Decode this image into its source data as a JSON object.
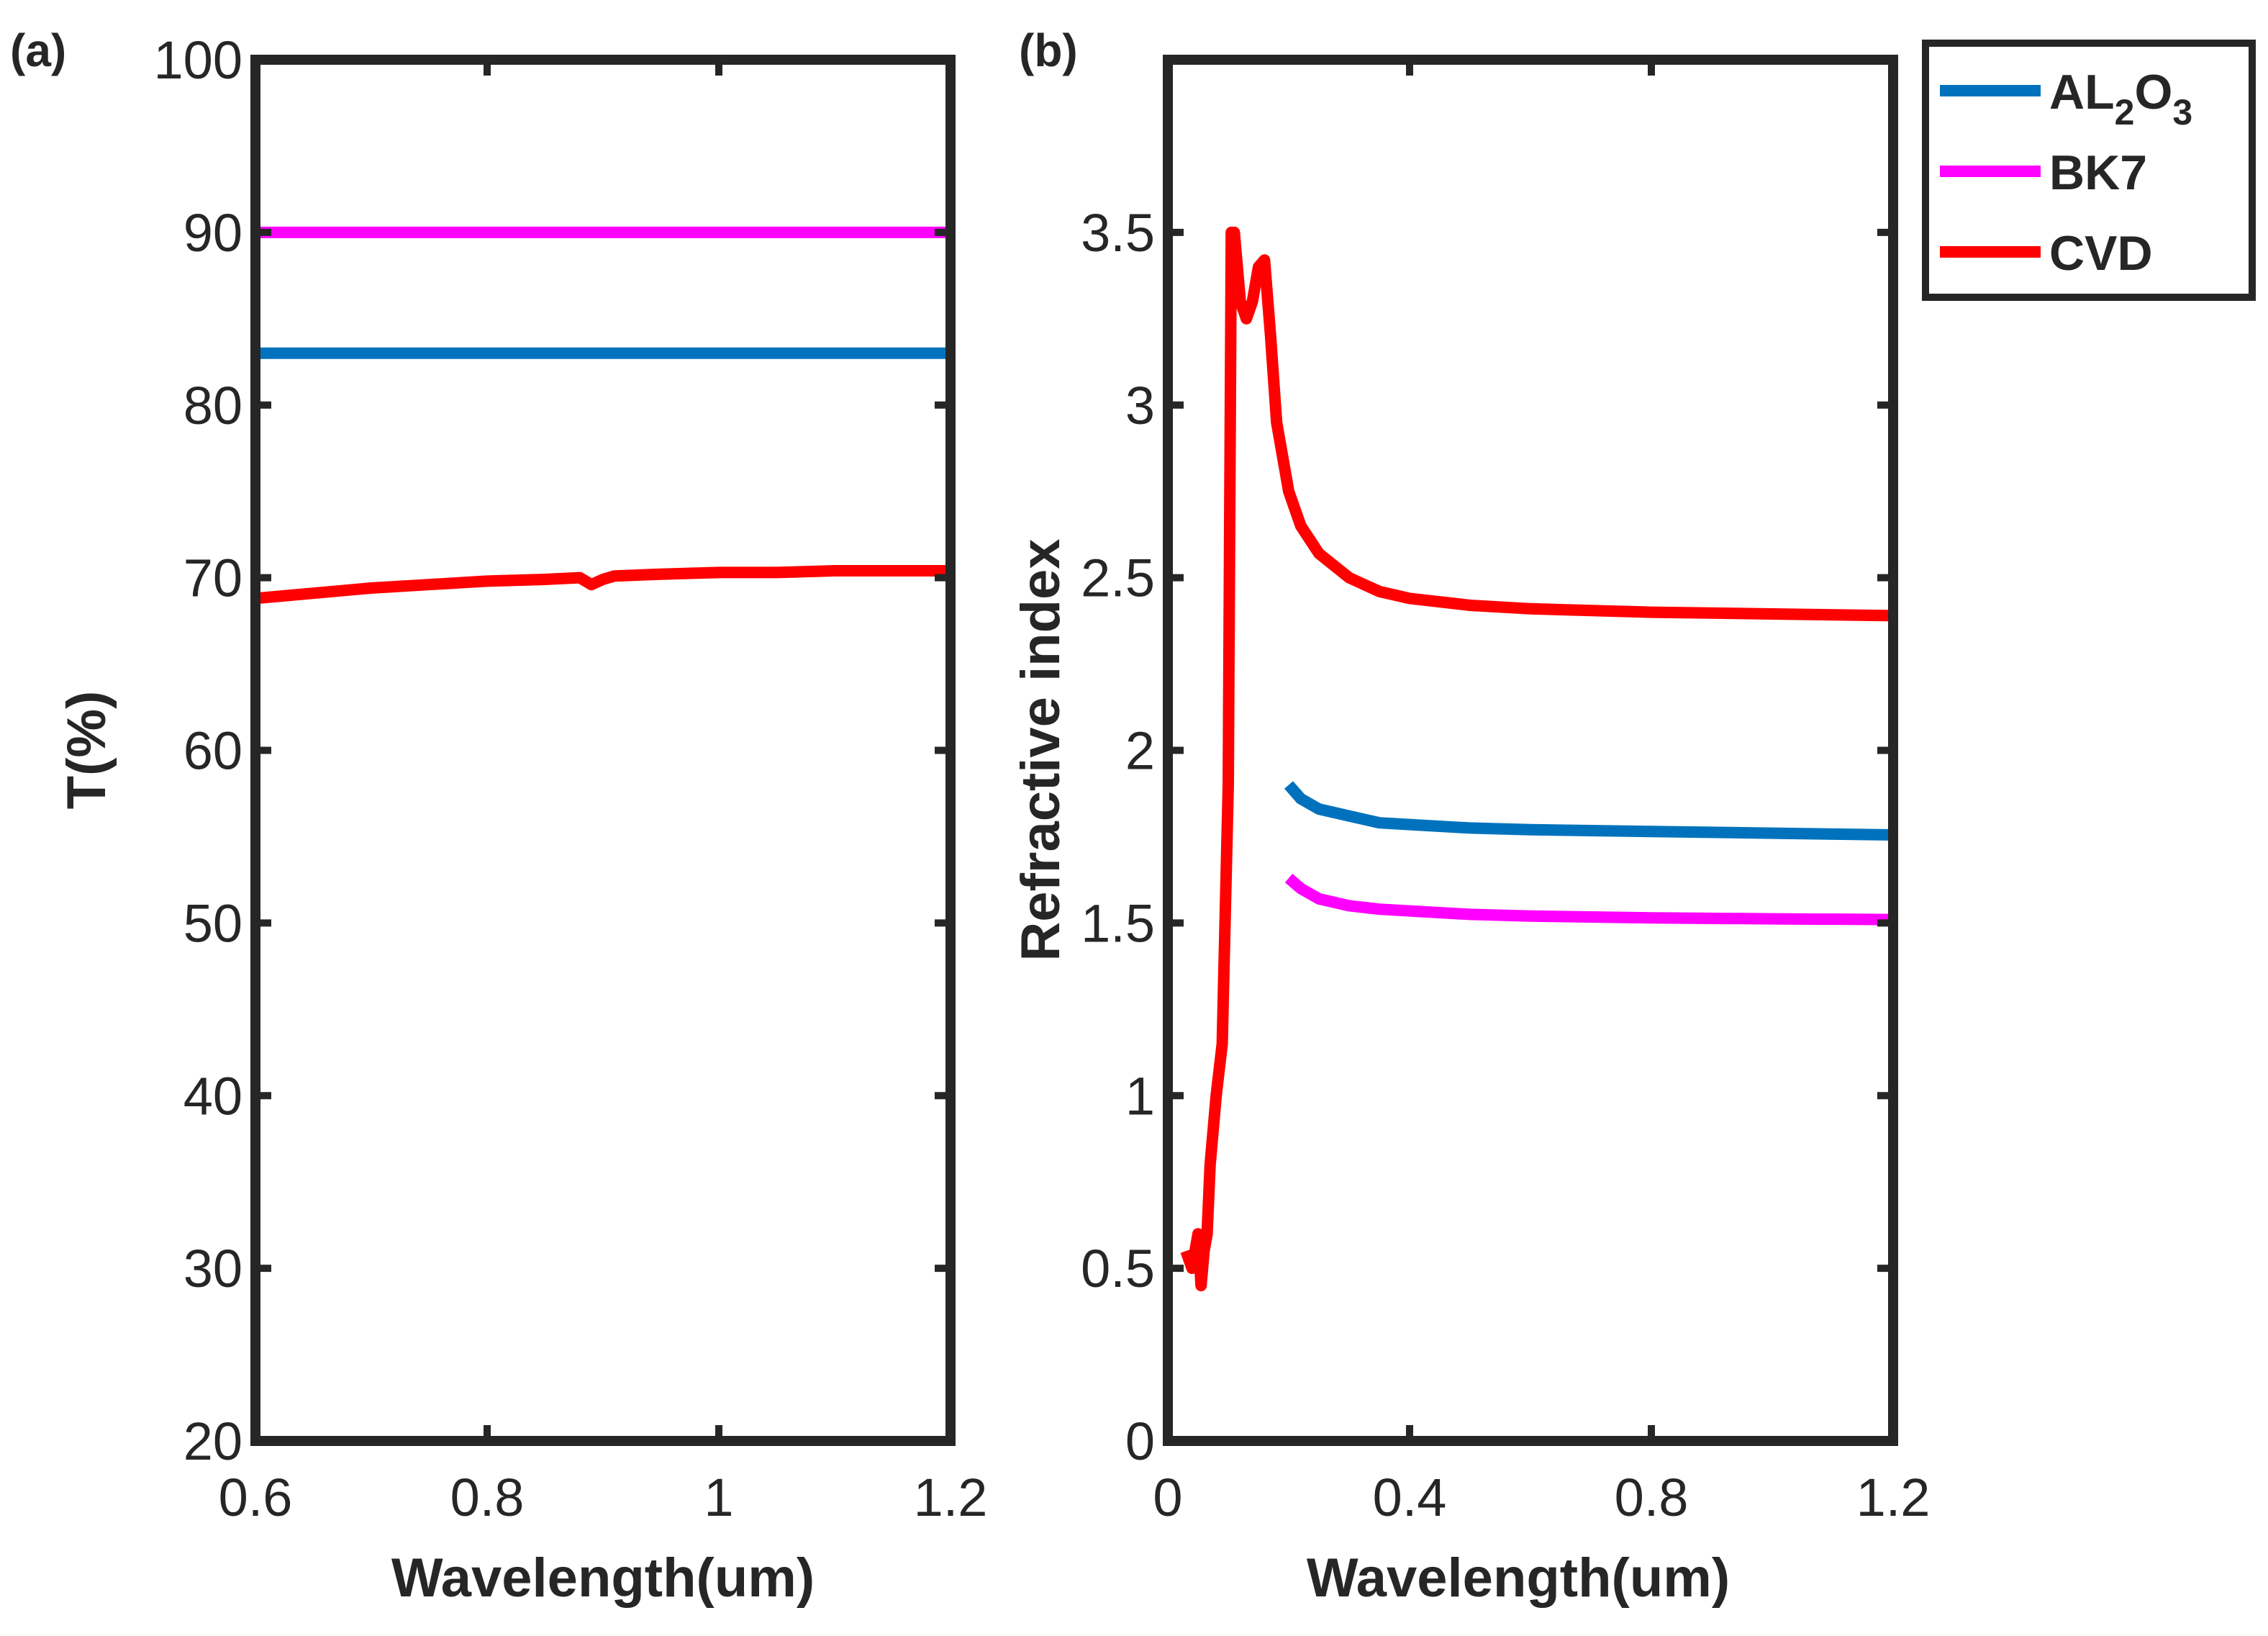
{
  "chart_data": [
    {
      "panel_label": "(a)",
      "type": "line",
      "xlabel": "Wavelength(um)",
      "ylabel": "T(%)",
      "xlim": [
        0.6,
        1.2
      ],
      "ylim": [
        20,
        100
      ],
      "xticks": [
        0.6,
        0.8,
        1,
        1.2
      ],
      "xtick_labels": [
        "0.6",
        "0.8",
        "1",
        "1.2"
      ],
      "yticks": [
        20,
        30,
        40,
        50,
        60,
        70,
        80,
        90,
        100
      ],
      "ytick_labels": [
        "20",
        "30",
        "40",
        "50",
        "60",
        "70",
        "80",
        "90",
        "100"
      ],
      "grid": false,
      "series": [
        {
          "name": "AL2O3",
          "color": "#0072BD",
          "x": [
            0.6,
            1.2
          ],
          "values": [
            83,
            83
          ]
        },
        {
          "name": "BK7",
          "color": "#FF00FF",
          "x": [
            0.6,
            1.2
          ],
          "values": [
            90,
            90
          ]
        },
        {
          "name": "CVD",
          "color": "#FF0000",
          "x": [
            0.6,
            0.65,
            0.7,
            0.75,
            0.8,
            0.85,
            0.88,
            0.89,
            0.9,
            0.91,
            0.95,
            1.0,
            1.05,
            1.1,
            1.15,
            1.2
          ],
          "values": [
            68.8,
            69.1,
            69.4,
            69.6,
            69.8,
            69.9,
            70.0,
            69.6,
            69.9,
            70.1,
            70.2,
            70.3,
            70.3,
            70.4,
            70.4,
            70.4
          ]
        }
      ]
    },
    {
      "panel_label": "(b)",
      "type": "line",
      "xlabel": "Wavelength(um)",
      "ylabel": "Refractive index",
      "xlim": [
        0,
        1.2
      ],
      "ylim": [
        0,
        4
      ],
      "xticks": [
        0,
        0.4,
        0.8,
        1.2
      ],
      "xtick_labels": [
        "0",
        "0.4",
        "0.8",
        "1.2"
      ],
      "yticks": [
        0,
        0.5,
        1,
        1.5,
        2,
        2.5,
        3,
        3.5
      ],
      "ytick_labels": [
        "0",
        "0.5",
        "1",
        "1.5",
        "2",
        "2.5",
        "3",
        "3.5"
      ],
      "grid": false,
      "legend_position": "top-right, outside",
      "series": [
        {
          "name": "AL2O3",
          "color": "#0072BD",
          "x": [
            0.2,
            0.22,
            0.25,
            0.3,
            0.35,
            0.4,
            0.5,
            0.6,
            0.8,
            1.0,
            1.2
          ],
          "values": [
            1.9,
            1.86,
            1.83,
            1.81,
            1.79,
            1.785,
            1.775,
            1.77,
            1.765,
            1.76,
            1.755
          ]
        },
        {
          "name": "BK7",
          "color": "#FF00FF",
          "x": [
            0.2,
            0.22,
            0.25,
            0.3,
            0.35,
            0.4,
            0.5,
            0.6,
            0.8,
            1.0,
            1.2
          ],
          "values": [
            1.63,
            1.6,
            1.57,
            1.55,
            1.54,
            1.535,
            1.525,
            1.52,
            1.515,
            1.512,
            1.51
          ]
        },
        {
          "name": "CVD",
          "color": "#FF0000",
          "x": [
            0.03,
            0.04,
            0.05,
            0.055,
            0.06,
            0.065,
            0.07,
            0.08,
            0.09,
            0.1,
            0.105,
            0.11,
            0.12,
            0.13,
            0.14,
            0.15,
            0.16,
            0.17,
            0.18,
            0.19,
            0.2,
            0.22,
            0.25,
            0.3,
            0.35,
            0.4,
            0.5,
            0.6,
            0.8,
            1.0,
            1.2
          ],
          "values": [
            0.55,
            0.5,
            0.6,
            0.45,
            0.55,
            0.6,
            0.8,
            1.0,
            1.15,
            1.9,
            3.5,
            3.5,
            3.3,
            3.25,
            3.3,
            3.4,
            3.42,
            3.2,
            2.95,
            2.85,
            2.75,
            2.65,
            2.57,
            2.5,
            2.46,
            2.44,
            2.42,
            2.41,
            2.4,
            2.395,
            2.39
          ]
        }
      ]
    }
  ],
  "legend": {
    "entries": [
      {
        "label": "AL",
        "sub1": "2",
        "mid": "O",
        "sub2": "3",
        "color": "#0072BD"
      },
      {
        "label": "BK7",
        "color": "#FF00FF"
      },
      {
        "label": "CVD",
        "color": "#FF0000"
      }
    ]
  }
}
